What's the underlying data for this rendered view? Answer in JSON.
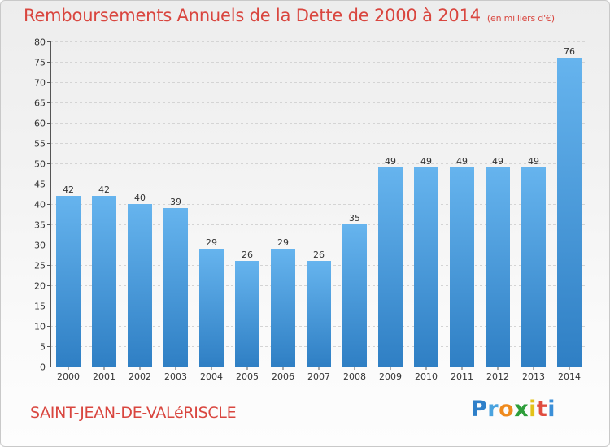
{
  "title": {
    "main": "Remboursements Annuels de la Dette de 2000 à 2014",
    "unit": "(en milliers d'€)"
  },
  "commune": "SAINT-JEAN-DE-VALéRISCLE",
  "logo": {
    "text": "Proxiti",
    "letters": [
      "P",
      "r",
      "o",
      "x",
      "i",
      "t",
      "i"
    ],
    "colors": [
      "#2e7fc9",
      "#4aa3df",
      "#ef8a1d",
      "#2e9e3a",
      "#e3c21a",
      "#e04d3f",
      "#3b8fd8"
    ]
  },
  "colors": {
    "bar_light": "#66b4ee",
    "bar_dark": "#2f7fc4",
    "title": "#d9463f",
    "grid": "#d4d4d4",
    "axis": "#555555"
  },
  "chart_data": {
    "type": "bar",
    "title": "Remboursements Annuels de la Dette de 2000 à 2014",
    "xlabel": "",
    "ylabel": "",
    "ylim": [
      0,
      80
    ],
    "ytick_step": 5,
    "grid": true,
    "categories": [
      "2000",
      "2001",
      "2002",
      "2003",
      "2004",
      "2005",
      "2006",
      "2007",
      "2008",
      "2009",
      "2010",
      "2011",
      "2012",
      "2013",
      "2014"
    ],
    "values": [
      42,
      42,
      40,
      39,
      29,
      26,
      29,
      26,
      35,
      49,
      49,
      49,
      49,
      49,
      76
    ]
  }
}
